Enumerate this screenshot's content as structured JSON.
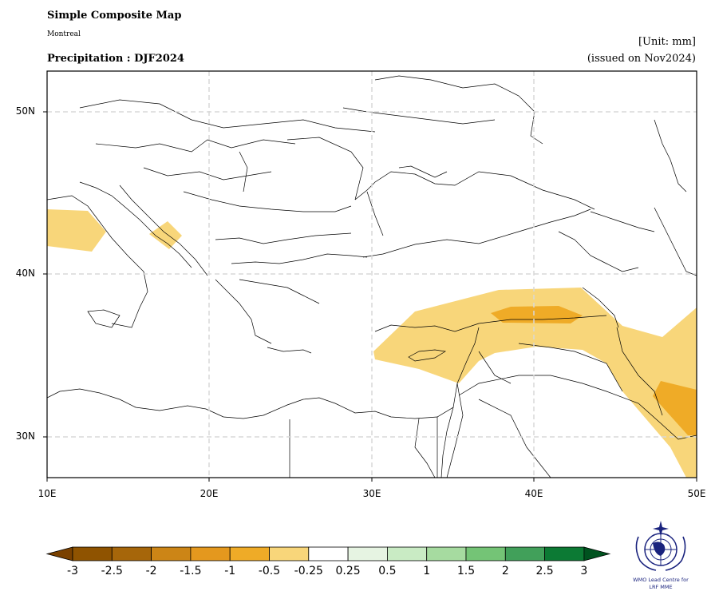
{
  "header": {
    "title": "Simple Composite Map",
    "subtitle": "Montreal",
    "variable_label": "Precipitation : DJF2024",
    "unit": "[Unit: mm]",
    "issued": "(issued on Nov2024)"
  },
  "map": {
    "lon_ticks": [
      "10E",
      "20E",
      "30E",
      "40E",
      "50E"
    ],
    "lat_ticks": [
      "50N",
      "40N",
      "30N"
    ],
    "lon_range": [
      10,
      50
    ],
    "lat_range": [
      27.5,
      52.5
    ],
    "gridlines": true,
    "anomaly_regions": [
      {
        "name": "central-italy",
        "level": -0.5,
        "color": "#f8d67a"
      },
      {
        "name": "adriatic",
        "level": -0.5,
        "color": "#f8d67a"
      },
      {
        "name": "levant-iraq",
        "level": -0.5,
        "color": "#f8d67a"
      },
      {
        "name": "se-turkey-core",
        "level": -1,
        "color": "#efab27"
      },
      {
        "name": "iraq-gulf-core",
        "level": -1,
        "color": "#efab27"
      }
    ]
  },
  "colorbar": {
    "levels": [
      "-3",
      "-2.5",
      "-2",
      "-1.5",
      "-1",
      "-0.5",
      "-0.25",
      "0.25",
      "0.5",
      "1",
      "1.5",
      "2",
      "2.5",
      "3"
    ],
    "colors": [
      "#7a4100",
      "#8f5300",
      "#a6660a",
      "#cc8516",
      "#e4981e",
      "#efab27",
      "#f8d67a",
      "#ffffff",
      "#e6f4e2",
      "#c9ebc4",
      "#a6dba0",
      "#74c476",
      "#41a05a",
      "#0c7a34",
      "#00531f"
    ]
  },
  "logo": {
    "line1": "WMO Lead Centre for",
    "line2": "LRF MME"
  }
}
